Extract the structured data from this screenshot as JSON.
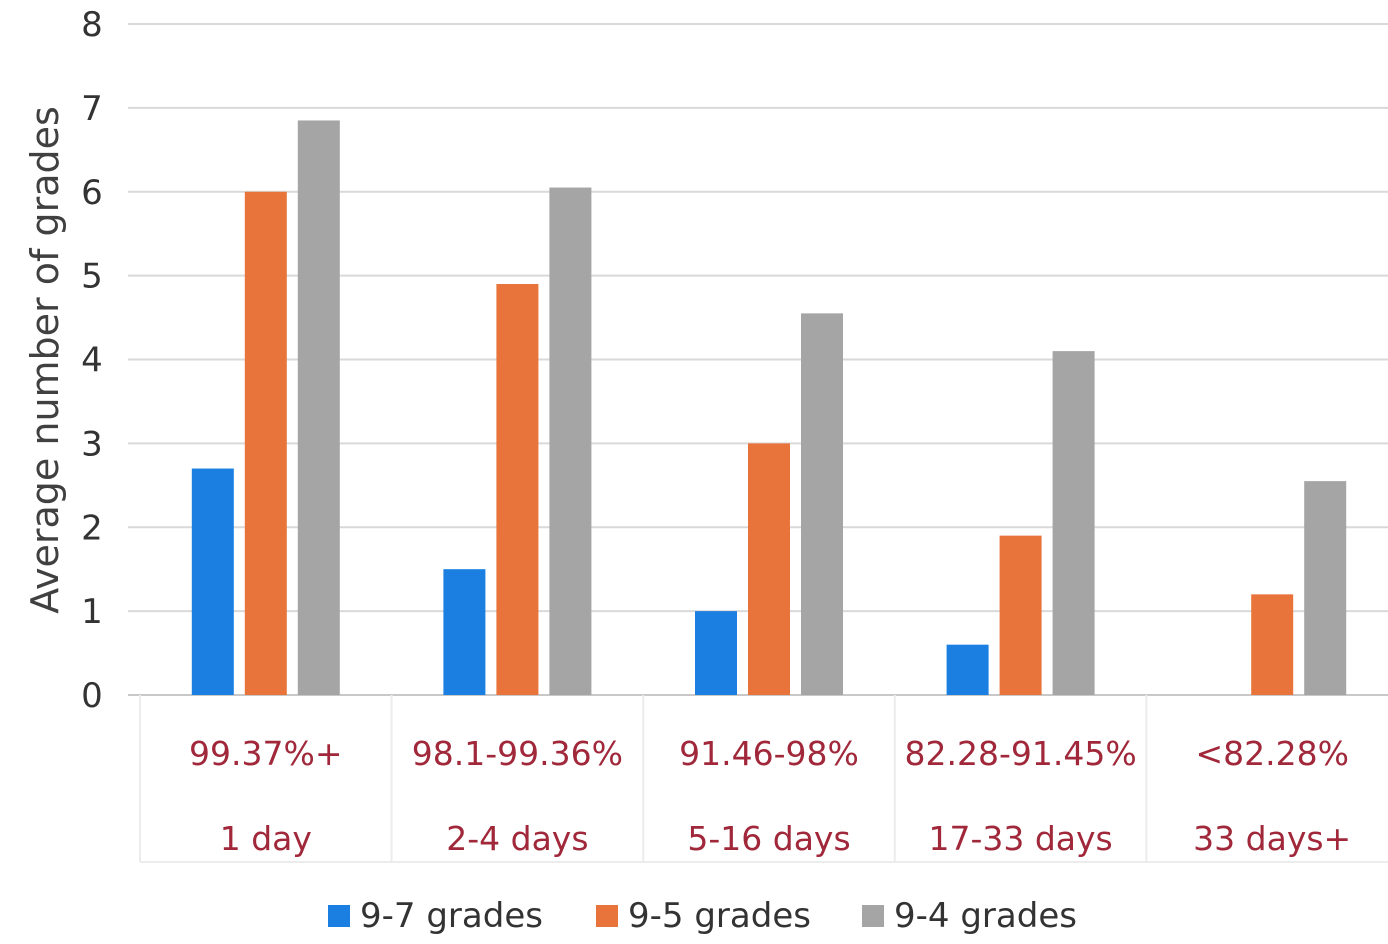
{
  "chart_data": {
    "type": "bar",
    "ylabel": "Average number of grades",
    "ylim": [
      0,
      8
    ],
    "yticks": [
      "0",
      "1",
      "2",
      "3",
      "4",
      "5",
      "6",
      "7",
      "8"
    ],
    "categories": [
      {
        "line1": "99.37%+",
        "line2": "1 day"
      },
      {
        "line1": "98.1-99.36%",
        "line2": "2-4 days"
      },
      {
        "line1": "91.46-98%",
        "line2": "5-16 days"
      },
      {
        "line1": "82.28-91.45%",
        "line2": "17-33 days"
      },
      {
        "line1": "<82.28%",
        "line2": "33 days+"
      }
    ],
    "series": [
      {
        "name": "9-7 grades",
        "color": "#1a7fe0",
        "values": [
          2.7,
          1.5,
          1.0,
          0.6,
          0
        ]
      },
      {
        "name": "9-5 grades",
        "color": "#e8743b",
        "values": [
          6.0,
          4.9,
          3.0,
          1.9,
          1.2
        ]
      },
      {
        "name": "9-4 grades",
        "color": "#a5a5a5",
        "values": [
          6.85,
          6.05,
          4.55,
          4.1,
          2.55
        ]
      }
    ],
    "grid": true,
    "legend": "bottom"
  }
}
